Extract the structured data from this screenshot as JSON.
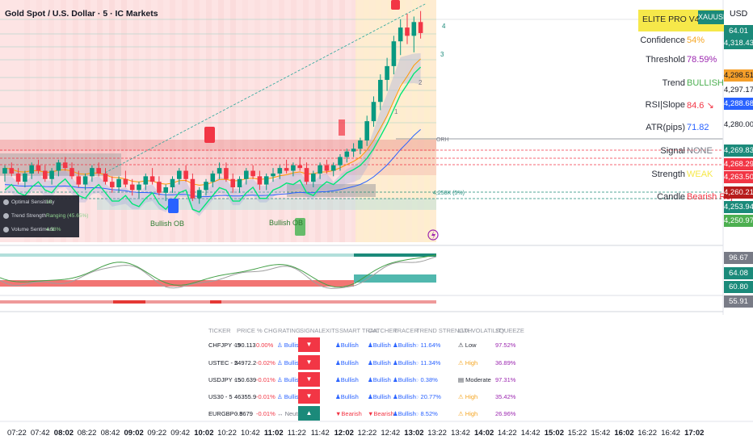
{
  "header": {
    "title": "Gold Spot / U.S. Dollar · 5 · IC Markets",
    "currency": "USD"
  },
  "elite_panel": {
    "title": "ELITE PRO V4",
    "va_label": "VA",
    "symbol_tag": "XAUUSD",
    "rows": [
      {
        "label": "Confidence",
        "value": "54%",
        "color": "#f5a623"
      },
      {
        "label": "Threshold",
        "value": "78.59%",
        "color": "#9c27b0"
      },
      {
        "label": "Trend",
        "value": "BULLISH",
        "color": "#4caf50"
      },
      {
        "label": "RSI|Slope",
        "value": "84.6 ↘",
        "color": "#f23645"
      },
      {
        "label": "ATR(pips)",
        "value": "71.82",
        "color": "#2962ff"
      },
      {
        "label": "Signal",
        "value": "NONE",
        "color": "#787b86"
      },
      {
        "label": "Strength",
        "value": "WEAK",
        "color": "#f6e84a"
      },
      {
        "label": "Candle",
        "value": "Bearish Rej",
        "color": "#f23645"
      }
    ]
  },
  "price_axis": {
    "tags": [
      {
        "value": "64.01",
        "bg": "#1b8a7a",
        "fg": "#ffffff"
      },
      {
        "value": "4,318.43",
        "bg": "#1b8a7a",
        "fg": "#ffffff"
      },
      {
        "value": "4,298.51",
        "bg": "#f59f2a",
        "fg": "#131722"
      },
      {
        "value": "4,297.17",
        "bg": "#ffffff",
        "fg": "#131722"
      },
      {
        "value": "4,288.68",
        "bg": "#2962ff",
        "fg": "#ffffff"
      },
      {
        "value": "4,280.00",
        "bg": "#ffffff",
        "fg": "#131722"
      },
      {
        "value": "4,269.83",
        "bg": "#1b8a7a",
        "fg": "#ffffff"
      },
      {
        "value": "4,268.29",
        "bg": "#f23645",
        "fg": "#ffffff"
      },
      {
        "value": "4,263.50",
        "bg": "#f23645",
        "fg": "#ffffff"
      },
      {
        "value": "4,260.21",
        "bg": "#b71c1c",
        "fg": "#ffffff"
      },
      {
        "value": "4,253.94",
        "bg": "#1b8a7a",
        "fg": "#ffffff"
      },
      {
        "value": "4,250.97",
        "bg": "#4caf50",
        "fg": "#ffffff"
      }
    ],
    "osc_tags": [
      {
        "value": "96.67",
        "bg": "#787b86",
        "fg": "#ffffff"
      },
      {
        "value": "64.08",
        "bg": "#1b8a7a",
        "fg": "#ffffff"
      },
      {
        "value": "60.80",
        "bg": "#1b8a7a",
        "fg": "#ffffff"
      },
      {
        "value": "55.91",
        "bg": "#787b86",
        "fg": "#ffffff"
      }
    ]
  },
  "chart_labels": {
    "orh": "ORH",
    "fib_levels": [
      "4",
      "3",
      "2",
      "1"
    ],
    "bullish_ob_1": "Bullish OB",
    "bullish_ob_2": "Bullish OB",
    "level_tag": "4,258K (5%)"
  },
  "indicator_box": {
    "rows": [
      {
        "label": "Optimal Sensitivity",
        "value": "18"
      },
      {
        "label": "Trend Strength",
        "value": "Ranging (45.65%)"
      },
      {
        "label": "Volume Sentiment",
        "value": "4.58%"
      }
    ]
  },
  "screener": {
    "headers": [
      "TICKER",
      "PRICE",
      "% CHG",
      "RATING",
      "SIGNAL",
      "EXITS",
      "SMART TRAIL",
      "CATCHER",
      "TRACER",
      "TREND STRENGTH",
      "LUX VOLATILITY",
      "SQUEEZE"
    ],
    "rows": [
      {
        "ticker": "CHFJPY - 5",
        "price": "190.113",
        "chg": "0.00%",
        "rating": "♙ Bullish",
        "signal": "▼",
        "signal_bg": "#f23645",
        "trail": "♟Bullish",
        "catcher": "♟Bullish",
        "tracer": "♟Bullish",
        "strength": "◌ 11.64%",
        "vol": "⚠ Low",
        "vol_color": "#2a2e39",
        "squeeze": "97.52%"
      },
      {
        "ticker": "USTEC - 5",
        "price": "24972.2",
        "chg": "-0.02%",
        "rating": "♙ Bullish",
        "signal": "▼",
        "signal_bg": "#f23645",
        "trail": "♟Bullish",
        "catcher": "♟Bullish",
        "tracer": "♟Bullish",
        "strength": "◌ 11.34%",
        "vol": "⚠ High",
        "vol_color": "#f5a623",
        "squeeze": "36.89%"
      },
      {
        "ticker": "USDJPY - 5",
        "price": "150.639",
        "chg": "-0.01%",
        "rating": "♙ Bullish",
        "signal": "▼",
        "signal_bg": "#f23645",
        "trail": "♟Bullish",
        "catcher": "♟Bullish",
        "tracer": "♟Bullish",
        "strength": "◌ 0.38%",
        "vol": "▤ Moderate",
        "vol_color": "#2a2e39",
        "squeeze": "97.31%"
      },
      {
        "ticker": "US30 - 5",
        "price": "46355.9",
        "chg": "-0.01%",
        "rating": "♙ Bullish",
        "signal": "▼",
        "signal_bg": "#f23645",
        "trail": "♟Bullish",
        "catcher": "♟Bullish",
        "tracer": "♟Bullish",
        "strength": "◌ 20.77%",
        "vol": "⚠ High",
        "vol_color": "#f5a623",
        "squeeze": "35.42%"
      },
      {
        "ticker": "EURGBP - 5",
        "price": "0.8679",
        "chg": "-0.01%",
        "rating": "↔ Neutral",
        "signal": "▲",
        "signal_bg": "#1b8a7a",
        "trail": "▼Bearish",
        "catcher": "▼Bearish",
        "tracer": "♟Bullish",
        "strength": "◌ 8.52%",
        "vol": "⚠ High",
        "vol_color": "#f5a623",
        "squeeze": "26.96%"
      }
    ]
  },
  "time_axis": [
    {
      "t": "07:22",
      "b": false
    },
    {
      "t": "07:42",
      "b": false
    },
    {
      "t": "08:02",
      "b": true
    },
    {
      "t": "08:22",
      "b": false
    },
    {
      "t": "08:42",
      "b": false
    },
    {
      "t": "09:02",
      "b": true
    },
    {
      "t": "09:22",
      "b": false
    },
    {
      "t": "09:42",
      "b": false
    },
    {
      "t": "10:02",
      "b": true
    },
    {
      "t": "10:22",
      "b": false
    },
    {
      "t": "10:42",
      "b": false
    },
    {
      "t": "11:02",
      "b": true
    },
    {
      "t": "11:22",
      "b": false
    },
    {
      "t": "11:42",
      "b": false
    },
    {
      "t": "12:02",
      "b": true
    },
    {
      "t": "12:22",
      "b": false
    },
    {
      "t": "12:42",
      "b": false
    },
    {
      "t": "13:02",
      "b": true
    },
    {
      "t": "13:22",
      "b": false
    },
    {
      "t": "13:42",
      "b": false
    },
    {
      "t": "14:02",
      "b": true
    },
    {
      "t": "14:22",
      "b": false
    },
    {
      "t": "14:42",
      "b": false
    },
    {
      "t": "15:02",
      "b": true
    },
    {
      "t": "15:22",
      "b": false
    },
    {
      "t": "15:42",
      "b": false
    },
    {
      "t": "16:02",
      "b": true
    },
    {
      "t": "16:22",
      "b": false
    },
    {
      "t": "16:42",
      "b": false
    },
    {
      "t": "17:02",
      "b": true
    }
  ],
  "candles": [
    [
      4262,
      4265,
      4259,
      4264
    ],
    [
      4264,
      4266,
      4261,
      4262
    ],
    [
      4262,
      4264,
      4258,
      4259
    ],
    [
      4259,
      4263,
      4257,
      4262
    ],
    [
      4262,
      4266,
      4260,
      4265
    ],
    [
      4265,
      4267,
      4262,
      4263
    ],
    [
      4263,
      4265,
      4259,
      4260
    ],
    [
      4260,
      4264,
      4258,
      4263
    ],
    [
      4263,
      4267,
      4261,
      4266
    ],
    [
      4266,
      4268,
      4263,
      4264
    ],
    [
      4264,
      4266,
      4260,
      4261
    ],
    [
      4261,
      4263,
      4257,
      4258
    ],
    [
      4258,
      4262,
      4256,
      4261
    ],
    [
      4261,
      4265,
      4259,
      4264
    ],
    [
      4264,
      4266,
      4261,
      4262
    ],
    [
      4262,
      4264,
      4258,
      4259
    ],
    [
      4259,
      4261,
      4255,
      4257
    ],
    [
      4257,
      4261,
      4255,
      4260
    ],
    [
      4260,
      4263,
      4257,
      4258
    ],
    [
      4258,
      4260,
      4254,
      4256
    ],
    [
      4256,
      4259,
      4253,
      4258
    ],
    [
      4258,
      4262,
      4256,
      4261
    ],
    [
      4261,
      4264,
      4258,
      4259
    ],
    [
      4259,
      4261,
      4254,
      4255
    ],
    [
      4255,
      4258,
      4252,
      4257
    ],
    [
      4257,
      4261,
      4255,
      4260
    ],
    [
      4260,
      4264,
      4258,
      4263
    ],
    [
      4263,
      4265,
      4259,
      4260
    ],
    [
      4260,
      4262,
      4252,
      4253
    ],
    [
      4253,
      4257,
      4251,
      4256
    ],
    [
      4256,
      4260,
      4254,
      4259
    ],
    [
      4259,
      4263,
      4257,
      4262
    ],
    [
      4262,
      4266,
      4260,
      4264
    ],
    [
      4264,
      4266,
      4259,
      4260
    ],
    [
      4260,
      4262,
      4255,
      4257
    ],
    [
      4257,
      4261,
      4255,
      4260
    ],
    [
      4260,
      4264,
      4258,
      4263
    ],
    [
      4263,
      4265,
      4260,
      4261
    ],
    [
      4261,
      4263,
      4256,
      4258
    ],
    [
      4258,
      4262,
      4256,
      4261
    ],
    [
      4261,
      4264,
      4259,
      4262
    ],
    [
      4262,
      4265,
      4260,
      4264
    ],
    [
      4264,
      4267,
      4262,
      4263
    ],
    [
      4263,
      4266,
      4261,
      4265
    ],
    [
      4265,
      4268,
      4263,
      4264
    ],
    [
      4264,
      4266,
      4258,
      4259
    ],
    [
      4259,
      4263,
      4257,
      4262
    ],
    [
      4262,
      4266,
      4260,
      4265
    ],
    [
      4265,
      4267,
      4262,
      4263
    ],
    [
      4263,
      4266,
      4261,
      4265
    ],
    [
      4265,
      4269,
      4263,
      4268
    ],
    [
      4268,
      4271,
      4266,
      4270
    ],
    [
      4270,
      4273,
      4268,
      4271
    ],
    [
      4271,
      4275,
      4269,
      4274
    ],
    [
      4274,
      4283,
      4272,
      4281
    ],
    [
      4281,
      4290,
      4279,
      4288
    ],
    [
      4288,
      4298,
      4285,
      4296
    ],
    [
      4296,
      4304,
      4292,
      4301
    ],
    [
      4301,
      4312,
      4298,
      4310
    ],
    [
      4310,
      4318,
      4305,
      4315
    ],
    [
      4315,
      4320,
      4309,
      4312
    ],
    [
      4312,
      4319,
      4306,
      4317
    ],
    [
      4317,
      4321,
      4311,
      4313
    ]
  ]
}
